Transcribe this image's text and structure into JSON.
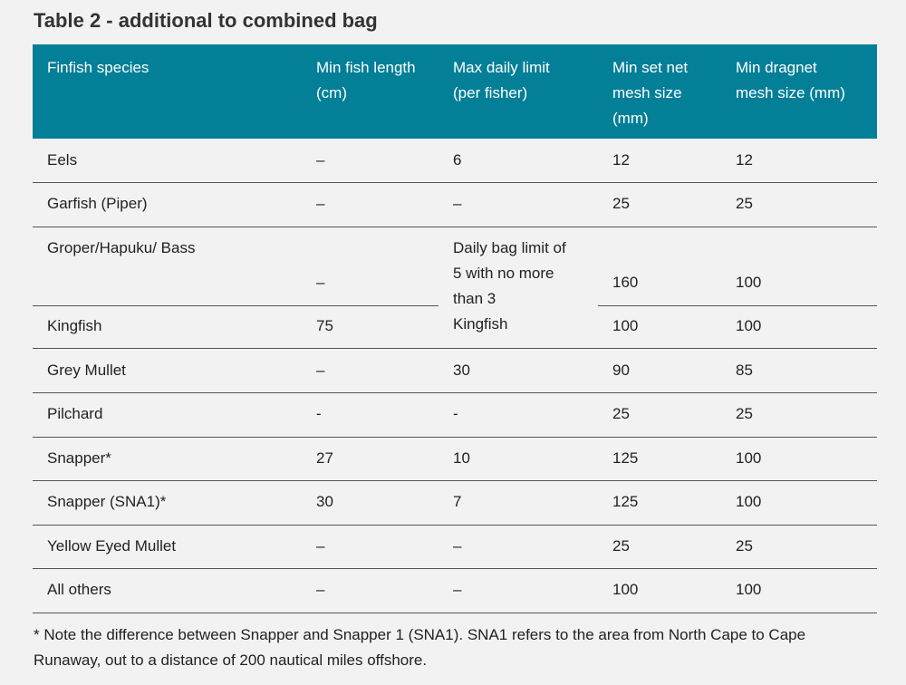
{
  "title": "Table 2 - additional to combined bag",
  "headers": {
    "species": [
      "Finfish species"
    ],
    "min_length": [
      "Min fish length",
      "(cm)"
    ],
    "max_daily": [
      "Max daily limit",
      "(per fisher)"
    ],
    "set_net": [
      "Min set net",
      "mesh size",
      "(mm)"
    ],
    "dragnet": [
      "Min dragnet",
      "mesh size (mm)"
    ]
  },
  "rows": {
    "eels": {
      "species": "Eels",
      "min_length": "–",
      "max_daily": "6",
      "set_net": "12",
      "dragnet": "12"
    },
    "garfish": {
      "species": "Garfish (Piper)",
      "min_length": "–",
      "max_daily": "–",
      "set_net": "25",
      "dragnet": "25"
    },
    "groper": {
      "species": "Groper/Hapuku/ Bass",
      "min_length": "–",
      "set_net": "160",
      "dragnet": "100"
    },
    "kingfish": {
      "species": "Kingfish",
      "min_length": "75",
      "set_net": "100",
      "dragnet": "100"
    },
    "shared_max_daily": [
      "Daily bag limit of",
      "5 with no more",
      "than 3",
      "Kingfish"
    ],
    "grey_mullet": {
      "species": "Grey Mullet",
      "min_length": "–",
      "max_daily": "30",
      "set_net": "90",
      "dragnet": "85"
    },
    "pilchard": {
      "species": "Pilchard",
      "min_length": "-",
      "max_daily": "-",
      "set_net": "25",
      "dragnet": "25"
    },
    "snapper": {
      "species": "Snapper*",
      "min_length": "27",
      "max_daily": "10",
      "set_net": "125",
      "dragnet": "100"
    },
    "snapper_sna1": {
      "species": "Snapper (SNA1)*",
      "min_length": "30",
      "max_daily": "7",
      "set_net": "125",
      "dragnet": "100"
    },
    "yellow_eyed_mullet": {
      "species": "Yellow Eyed Mullet",
      "min_length": "–",
      "max_daily": "–",
      "set_net": "25",
      "dragnet": "25"
    },
    "all_others": {
      "species": "All others",
      "min_length": "–",
      "max_daily": "–",
      "set_net": "100",
      "dragnet": "100"
    }
  },
  "footnote": [
    "* Note the difference between Snapper and Snapper 1 (SNA1). SNA1 refers to the area from North Cape to Cape",
    "Runaway, out to a distance of 200 nautical miles offshore."
  ]
}
